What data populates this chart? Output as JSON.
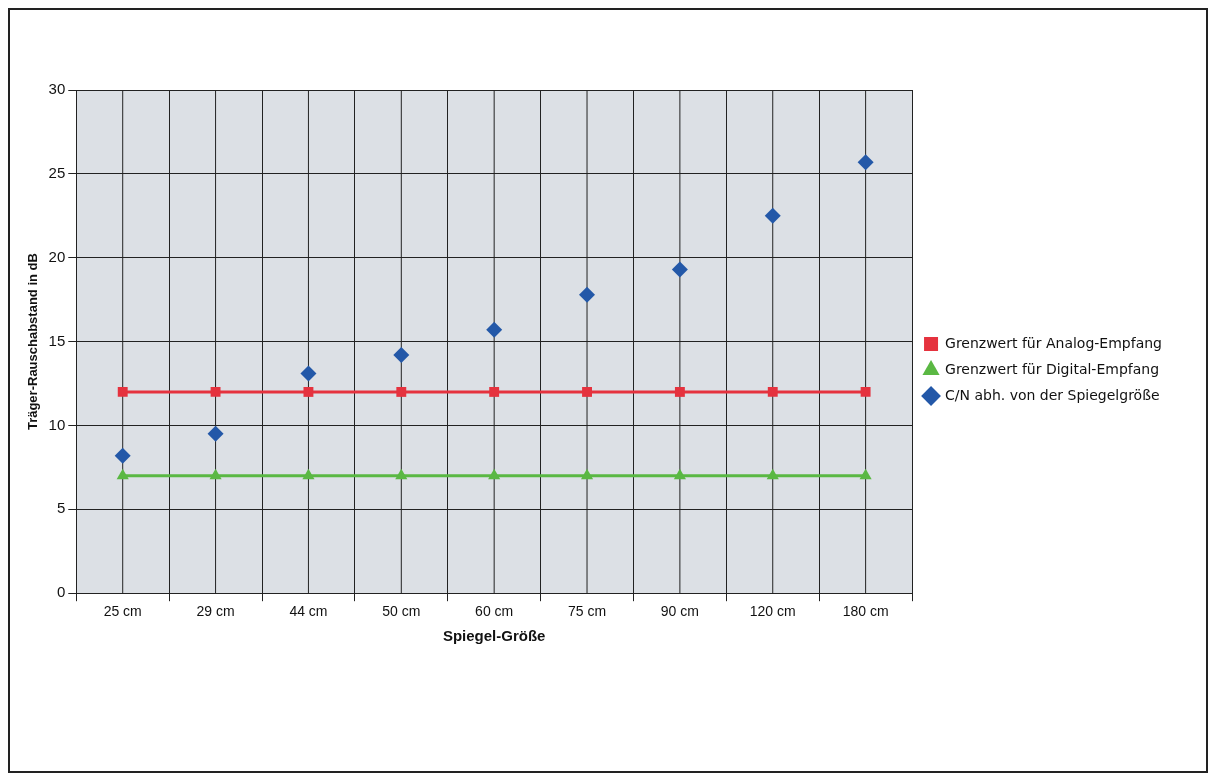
{
  "chart_data": {
    "type": "line",
    "xlabel": "Spiegel-Größe",
    "ylabel": "Träger-Rauschabstand in dB",
    "categories": [
      "25 cm",
      "29 cm",
      "44 cm",
      "50 cm",
      "60 cm",
      "75 cm",
      "90 cm",
      "120 cm",
      "180 cm"
    ],
    "series": [
      {
        "name": "Grenzwert für Analog-Empfang",
        "marker": "square",
        "color": "#e5323e",
        "values": [
          12,
          12,
          12,
          12,
          12,
          12,
          12,
          12,
          12
        ]
      },
      {
        "name": "Grenzwert für Digital-Empfang",
        "marker": "triangle",
        "color": "#5ab843",
        "values": [
          7,
          7,
          7,
          7,
          7,
          7,
          7,
          7,
          7
        ]
      },
      {
        "name": "C/N abh. von der Spiegelgröße",
        "type": "scatter",
        "marker": "diamond",
        "color": "#2358a8",
        "values": [
          8.2,
          9.5,
          13.1,
          14.2,
          15.7,
          17.8,
          19.3,
          22.5,
          25.7
        ]
      }
    ],
    "ylim": [
      0,
      30
    ],
    "yticks": [
      0,
      5,
      10,
      15,
      20,
      25,
      30
    ],
    "grid": true,
    "legend": "right"
  }
}
